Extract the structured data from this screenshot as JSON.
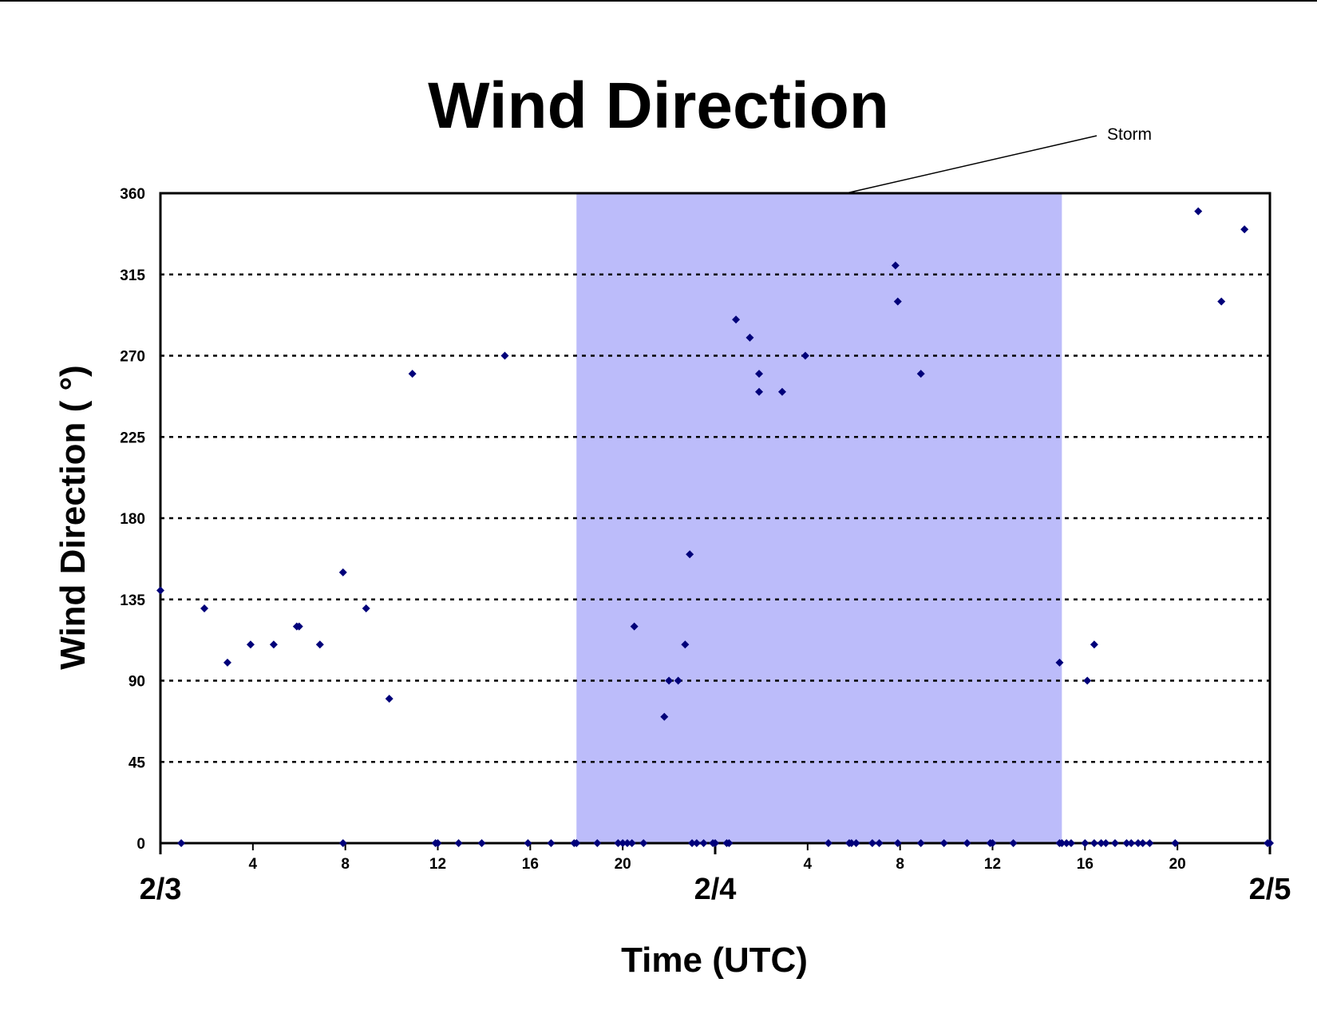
{
  "chart_data": {
    "type": "scatter",
    "title": "Wind Direction",
    "xlabel": "Time (UTC)",
    "ylabel": "Wind Direction ( °)",
    "xlim": [
      0,
      48
    ],
    "ylim": [
      0,
      360
    ],
    "y_ticks": [
      0,
      45,
      90,
      135,
      180,
      225,
      270,
      315,
      360
    ],
    "x_minor_ticks": [
      {
        "x": 4,
        "label": "4"
      },
      {
        "x": 8,
        "label": "8"
      },
      {
        "x": 12,
        "label": "12"
      },
      {
        "x": 16,
        "label": "16"
      },
      {
        "x": 20,
        "label": "20"
      },
      {
        "x": 28,
        "label": "4"
      },
      {
        "x": 32,
        "label": "8"
      },
      {
        "x": 36,
        "label": "12"
      },
      {
        "x": 40,
        "label": "16"
      },
      {
        "x": 44,
        "label": "20"
      }
    ],
    "x_major_ticks": [
      {
        "x": 0,
        "label": "2/3"
      },
      {
        "x": 24,
        "label": "2/4"
      },
      {
        "x": 48,
        "label": "2/5"
      }
    ],
    "grid": "horizontal dotted",
    "shaded_region": {
      "label": "Storm",
      "x_start": 18,
      "x_end": 39,
      "color": "#bcbcfa"
    },
    "marker_color": "#00007a",
    "series": [
      {
        "points": [
          [
            0,
            140
          ],
          [
            1.9,
            130
          ],
          [
            2.9,
            100
          ],
          [
            3.9,
            110
          ],
          [
            4.9,
            110
          ],
          [
            5.9,
            120
          ],
          [
            6.0,
            120
          ],
          [
            6.9,
            110
          ],
          [
            7.9,
            150
          ],
          [
            8.9,
            130
          ],
          [
            9.9,
            80
          ],
          [
            10.9,
            260
          ],
          [
            14.9,
            270
          ],
          [
            20.5,
            120
          ],
          [
            21.8,
            70
          ],
          [
            22.0,
            90
          ],
          [
            22.4,
            90
          ],
          [
            22.7,
            110
          ],
          [
            22.9,
            160
          ],
          [
            24.9,
            290
          ],
          [
            25.5,
            280
          ],
          [
            25.9,
            260
          ],
          [
            25.9,
            250
          ],
          [
            26.9,
            250
          ],
          [
            27.9,
            270
          ],
          [
            31.8,
            320
          ],
          [
            31.9,
            300
          ],
          [
            32.9,
            260
          ],
          [
            38.9,
            100
          ],
          [
            40.1,
            90
          ],
          [
            40.4,
            110
          ],
          [
            44.9,
            350
          ],
          [
            45.9,
            300
          ],
          [
            46.9,
            340
          ],
          [
            0.9,
            0
          ],
          [
            7.9,
            0
          ],
          [
            11.9,
            0
          ],
          [
            12.0,
            0
          ],
          [
            12.9,
            0
          ],
          [
            13.9,
            0
          ],
          [
            15.9,
            0
          ],
          [
            16.9,
            0
          ],
          [
            17.9,
            0
          ],
          [
            18.0,
            0
          ],
          [
            18.9,
            0
          ],
          [
            19.8,
            0
          ],
          [
            20.0,
            0
          ],
          [
            20.2,
            0
          ],
          [
            20.4,
            0
          ],
          [
            20.9,
            0
          ],
          [
            23.0,
            0
          ],
          [
            23.2,
            0
          ],
          [
            23.5,
            0
          ],
          [
            23.9,
            0
          ],
          [
            24.0,
            0
          ],
          [
            24.5,
            0
          ],
          [
            24.6,
            0
          ],
          [
            28.9,
            0
          ],
          [
            29.8,
            0
          ],
          [
            29.9,
            0
          ],
          [
            30.1,
            0
          ],
          [
            30.8,
            0
          ],
          [
            31.1,
            0
          ],
          [
            31.9,
            0
          ],
          [
            32.9,
            0
          ],
          [
            33.9,
            0
          ],
          [
            34.9,
            0
          ],
          [
            35.9,
            0
          ],
          [
            36.0,
            0
          ],
          [
            36.9,
            0
          ],
          [
            38.9,
            0
          ],
          [
            39.0,
            0
          ],
          [
            39.2,
            0
          ],
          [
            39.4,
            0
          ],
          [
            40.0,
            0
          ],
          [
            40.4,
            0
          ],
          [
            40.7,
            0
          ],
          [
            40.9,
            0
          ],
          [
            41.3,
            0
          ],
          [
            41.8,
            0
          ],
          [
            42.0,
            0
          ],
          [
            42.3,
            0
          ],
          [
            42.5,
            0
          ],
          [
            42.8,
            0
          ],
          [
            43.9,
            0
          ],
          [
            47.9,
            0
          ],
          [
            48.0,
            0
          ]
        ]
      }
    ]
  }
}
